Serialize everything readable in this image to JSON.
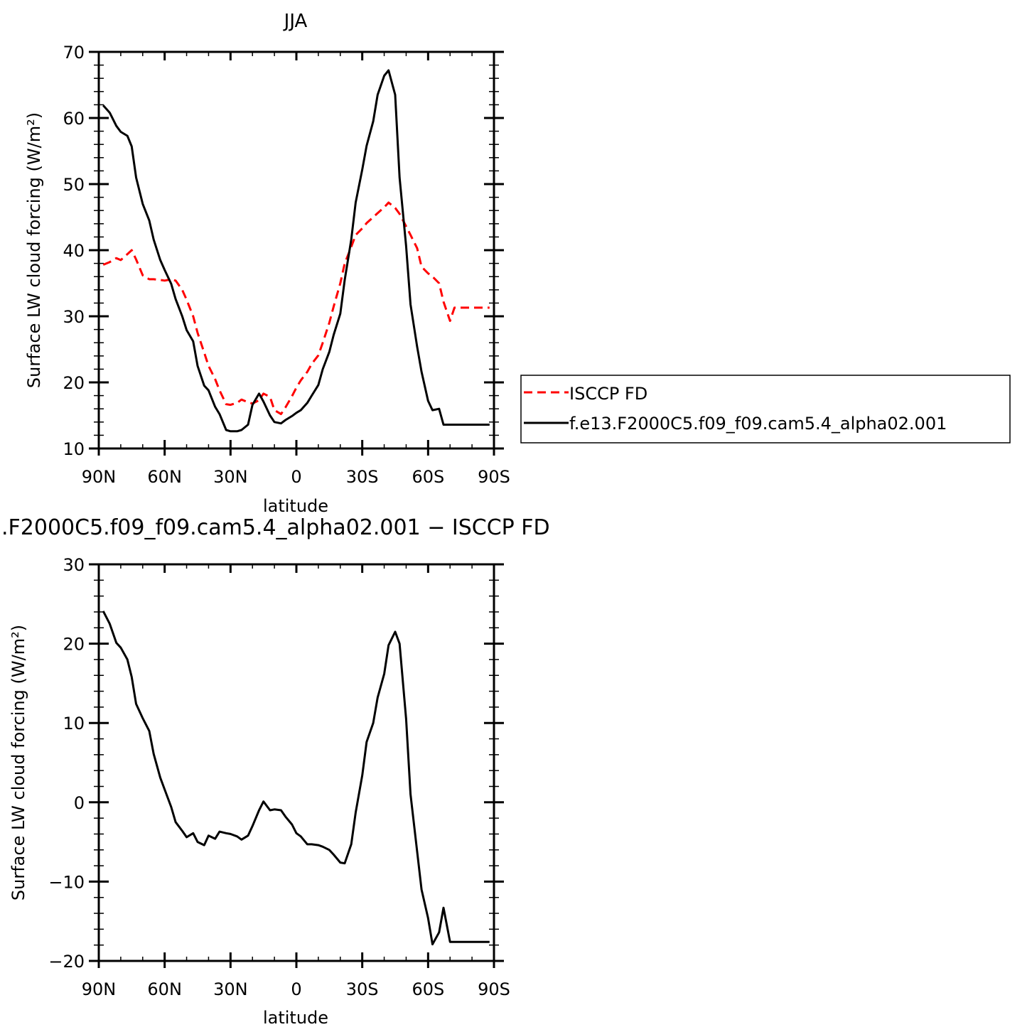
{
  "chart_data": [
    {
      "type": "line",
      "title": "JJA",
      "xlabel": "latitude",
      "ylabel": "Surface LW cloud forcing (W/m²)",
      "xlim": [
        -90,
        90
      ],
      "ylim": [
        10,
        70
      ],
      "xticks": [
        -90,
        -60,
        -30,
        0,
        30,
        60,
        90
      ],
      "xtick_labels": [
        "90N",
        "60N",
        "30N",
        "0",
        "30S",
        "60S",
        "90S"
      ],
      "yticks": [
        10,
        20,
        30,
        40,
        50,
        60,
        70
      ],
      "ytick_labels": [
        "10",
        "20",
        "30",
        "40",
        "50",
        "60",
        "70"
      ],
      "legend_position": "right",
      "series": [
        {
          "name": "ISCCP FD",
          "color": "#ff0000",
          "dash": "dashed",
          "x": [
            -88,
            -85,
            -82,
            -80,
            -77,
            -75,
            -73,
            -70,
            -67,
            -65,
            -62,
            -60,
            -57,
            -55,
            -52,
            -50,
            -47,
            -45,
            -42,
            -40,
            -37,
            -35,
            -32,
            -30,
            -27,
            -25,
            -22,
            -20,
            -17,
            -15,
            -12,
            -10,
            -7,
            -5,
            -2,
            0,
            2,
            5,
            7,
            10,
            12,
            15,
            17,
            20,
            22,
            25,
            27,
            30,
            32,
            35,
            37,
            40,
            42,
            45,
            47,
            50,
            52,
            55,
            57,
            60,
            62,
            65,
            67,
            70,
            72,
            75,
            77,
            80,
            82,
            85,
            88
          ],
          "y": [
            37.8,
            38.2,
            38.8,
            38.5,
            39.4,
            40.0,
            38.6,
            36.2,
            35.6,
            35.6,
            35.5,
            35.4,
            35.6,
            35.4,
            34.0,
            32.5,
            30.0,
            27.5,
            24.5,
            22.5,
            20.5,
            18.8,
            16.7,
            16.6,
            16.9,
            17.4,
            17.0,
            16.8,
            17.3,
            18.3,
            17.8,
            15.8,
            15.2,
            16.2,
            17.9,
            19.2,
            20.3,
            21.6,
            22.8,
            24.1,
            26.0,
            29.0,
            31.5,
            35.0,
            38.0,
            40.5,
            42.3,
            43.3,
            44.1,
            45.0,
            45.6,
            46.5,
            47.2,
            46.4,
            45.5,
            43.6,
            42.3,
            40.3,
            37.5,
            36.5,
            36.0,
            35.0,
            32.2,
            29.3,
            31.3,
            31.3,
            31.3,
            31.3,
            31.3,
            31.3,
            31.3
          ]
        },
        {
          "name": "f.e13.F2000C5.f09_f09.cam5.4_alpha02.001",
          "color": "#000000",
          "dash": "solid",
          "x": [
            -88,
            -85,
            -82,
            -80,
            -77,
            -75,
            -73,
            -70,
            -67,
            -65,
            -62,
            -60,
            -57,
            -55,
            -52,
            -50,
            -47,
            -45,
            -42,
            -40,
            -37,
            -35,
            -32,
            -30,
            -27,
            -25,
            -22,
            -20,
            -17,
            -15,
            -12,
            -10,
            -7,
            -5,
            -2,
            0,
            2,
            5,
            7,
            10,
            12,
            15,
            17,
            20,
            22,
            25,
            27,
            30,
            32,
            35,
            37,
            40,
            42,
            45,
            47,
            50,
            52,
            55,
            57,
            60,
            62,
            65,
            67,
            70,
            72,
            75,
            77,
            80,
            82,
            85,
            88
          ],
          "y": [
            61.9,
            60.8,
            58.8,
            57.9,
            57.3,
            55.7,
            51.0,
            47.0,
            44.5,
            41.6,
            38.5,
            37.0,
            34.9,
            32.6,
            30.0,
            27.9,
            26.2,
            22.5,
            19.5,
            18.8,
            16.3,
            15.2,
            12.8,
            12.6,
            12.6,
            12.8,
            13.6,
            16.6,
            18.3,
            17.1,
            15.0,
            14.0,
            13.8,
            14.3,
            14.9,
            15.4,
            15.8,
            16.9,
            18.0,
            19.6,
            22.0,
            24.6,
            27.2,
            30.4,
            35.5,
            41.6,
            47.2,
            52.2,
            55.8,
            59.5,
            63.5,
            66.4,
            67.2,
            63.5,
            51.0,
            40.6,
            31.8,
            25.4,
            21.6,
            17.2,
            15.8,
            16.0,
            13.6,
            13.6,
            13.6,
            13.6,
            13.6,
            13.6,
            13.6,
            13.6,
            13.6
          ]
        }
      ]
    },
    {
      "type": "line",
      "title": ".F2000C5.f09_f09.cam5.4_alpha02.001 − ISCCP FD",
      "xlabel": "latitude",
      "ylabel": "Surface LW cloud forcing (W/m²)",
      "xlim": [
        -90,
        90
      ],
      "ylim": [
        -20,
        30
      ],
      "xticks": [
        -90,
        -60,
        -30,
        0,
        30,
        60,
        90
      ],
      "xtick_labels": [
        "90N",
        "60N",
        "30N",
        "0",
        "30S",
        "60S",
        "90S"
      ],
      "yticks": [
        -20,
        -10,
        0,
        10,
        20,
        30
      ],
      "ytick_labels": [
        "−20",
        "−10",
        "0",
        "10",
        "20",
        "30"
      ],
      "series": [
        {
          "color": "#000000",
          "dash": "solid",
          "x": [
            -88,
            -85,
            -82,
            -80,
            -77,
            -75,
            -73,
            -70,
            -67,
            -65,
            -62,
            -60,
            -57,
            -55,
            -52,
            -50,
            -47,
            -45,
            -42,
            -40,
            -37,
            -35,
            -32,
            -30,
            -27,
            -25,
            -22,
            -20,
            -17,
            -15,
            -12,
            -10,
            -7,
            -5,
            -2,
            0,
            2,
            5,
            7,
            10,
            12,
            15,
            17,
            20,
            22,
            25,
            27,
            30,
            32,
            35,
            37,
            40,
            42,
            45,
            47,
            50,
            52,
            55,
            57,
            60,
            62,
            65,
            67,
            70,
            72,
            75,
            77,
            80,
            82,
            85,
            88
          ],
          "y": [
            24.1,
            22.5,
            20.1,
            19.5,
            18.0,
            15.8,
            12.4,
            10.6,
            9.0,
            6.1,
            3.1,
            1.6,
            -0.6,
            -2.5,
            -3.6,
            -4.4,
            -3.9,
            -5.0,
            -5.4,
            -4.2,
            -4.6,
            -3.7,
            -3.9,
            -4.0,
            -4.3,
            -4.7,
            -4.2,
            -3.0,
            -1.0,
            0.1,
            -1.0,
            -0.9,
            -1.0,
            -1.8,
            -2.8,
            -3.9,
            -4.3,
            -5.3,
            -5.3,
            -5.4,
            -5.6,
            -6.0,
            -6.6,
            -7.6,
            -7.7,
            -5.3,
            -1.3,
            3.4,
            7.6,
            10.0,
            13.2,
            16.2,
            19.8,
            21.5,
            20.0,
            10.5,
            1.0,
            -6.2,
            -11.0,
            -14.6,
            -17.9,
            -16.4,
            -13.3,
            -17.6,
            -17.6,
            -17.6,
            -17.6,
            -17.6,
            -17.6,
            -17.6,
            -17.6
          ]
        }
      ]
    }
  ]
}
